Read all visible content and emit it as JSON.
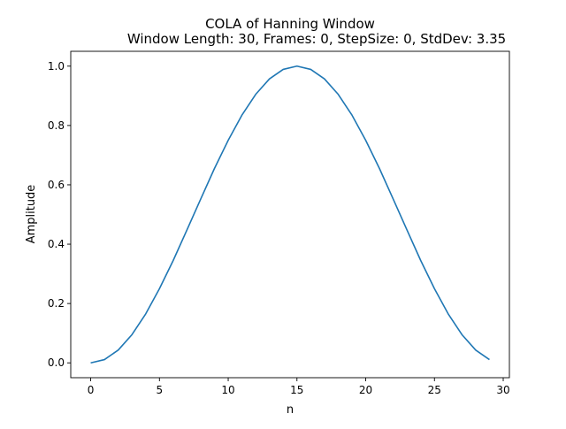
{
  "chart_data": {
    "type": "line",
    "title": "COLA of Hanning Window",
    "subtitle": "Window Length: 30, Frames: 0, StepSize: 0, StdDev: 3.35",
    "xlabel": "n",
    "ylabel": "Amplitude",
    "xlim": [
      -1.45,
      30.45
    ],
    "ylim": [
      -0.05,
      1.05
    ],
    "xticks": [
      0,
      5,
      10,
      15,
      20,
      25,
      30
    ],
    "xtick_labels": [
      "0",
      "5",
      "10",
      "15",
      "20",
      "25",
      "30"
    ],
    "yticks": [
      0.0,
      0.2,
      0.4,
      0.6,
      0.8,
      1.0
    ],
    "ytick_labels": [
      "0.0",
      "0.2",
      "0.4",
      "0.6",
      "0.8",
      "1.0"
    ],
    "grid": false,
    "series": [
      {
        "color": "#1f77b4",
        "x": [
          0,
          1,
          2,
          3,
          4,
          5,
          6,
          7,
          8,
          9,
          10,
          11,
          12,
          13,
          14,
          15,
          16,
          17,
          18,
          19,
          20,
          21,
          22,
          23,
          24,
          25,
          26,
          27,
          28,
          29
        ],
        "y": [
          0.0,
          0.011,
          0.043,
          0.095,
          0.165,
          0.25,
          0.345,
          0.448,
          0.552,
          0.655,
          0.75,
          0.835,
          0.905,
          0.957,
          0.989,
          1.0,
          0.989,
          0.957,
          0.905,
          0.835,
          0.75,
          0.655,
          0.552,
          0.448,
          0.345,
          0.25,
          0.165,
          0.095,
          0.043,
          0.011
        ]
      }
    ]
  }
}
